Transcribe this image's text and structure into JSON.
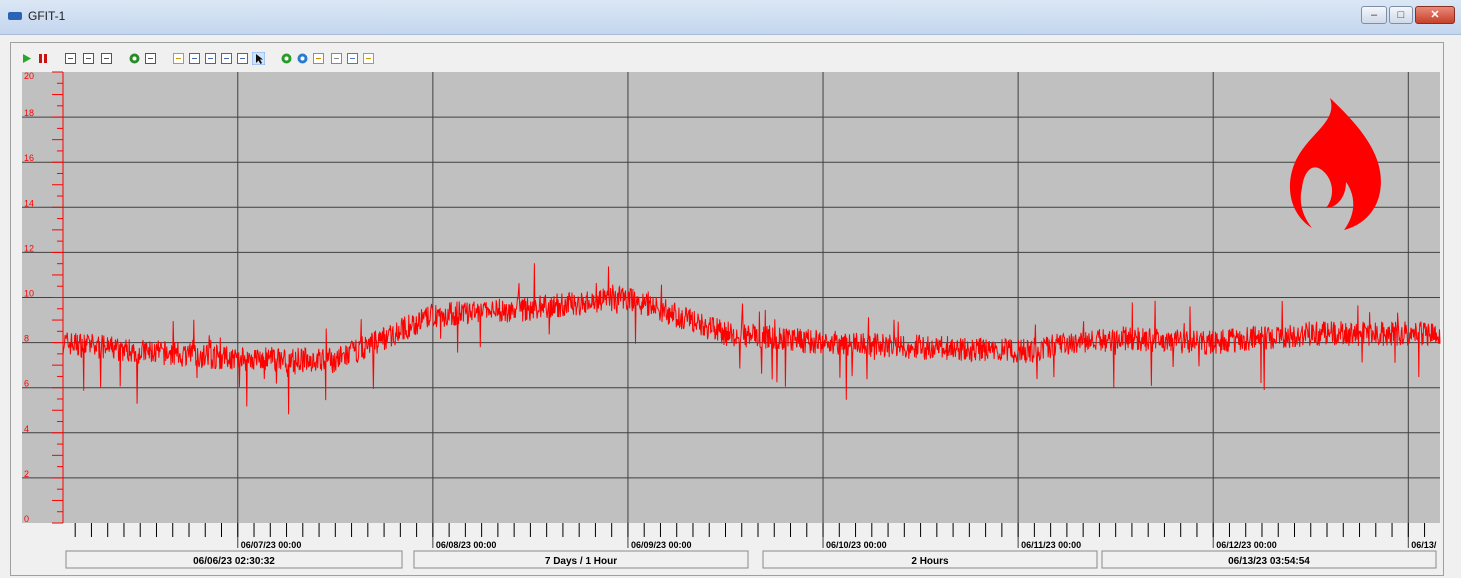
{
  "window": {
    "title": "GFIT-1"
  },
  "window_buttons": {
    "minimize": "–",
    "maximize": "□",
    "close": "✕"
  },
  "toolbar": {
    "buttons": [
      {
        "name": "start-icon"
      },
      {
        "name": "pause-icon"
      },
      {
        "name": "fit-width-icon"
      },
      {
        "name": "fit-marker-icon"
      },
      {
        "name": "reset-view-icon"
      },
      {
        "name": "refresh-data-icon"
      },
      {
        "name": "print-icon"
      },
      {
        "name": "cursor-line-icon"
      },
      {
        "name": "zoom-area-icon"
      },
      {
        "name": "zoom-in-icon"
      },
      {
        "name": "zoom-out-icon"
      },
      {
        "name": "zoom-reset-icon"
      },
      {
        "name": "pointer-icon"
      },
      {
        "name": "reload-icon"
      },
      {
        "name": "add-pen-icon"
      },
      {
        "name": "grid-icon"
      },
      {
        "name": "scale-icon"
      },
      {
        "name": "properties-icon"
      },
      {
        "name": "export-icon"
      }
    ]
  },
  "status": {
    "start_time": "06/06/23 02:30:32",
    "duration": "7 Days / 1 Hour",
    "interval": "2 Hours",
    "end_time": "06/13/23 03:54:54"
  },
  "colors": {
    "pen": "#ff0000",
    "plot_bg": "#c0c0c0",
    "grid": "#404040",
    "accent": "#cc2222"
  },
  "chart_data": {
    "type": "line",
    "series": [
      {
        "x": [
          "06/06/23 02:30",
          "06/06/23 12:00",
          "06/07/23 00:00",
          "06/07/23 12:00",
          "06/08/23 00:00",
          "06/08/23 12:00",
          "06/09/23 00:00",
          "06/09/23 12:00",
          "06/10/23 00:00",
          "06/10/23 12:00",
          "06/11/23 00:00",
          "06/11/23 12:00",
          "06/12/23 00:00",
          "06/12/23 12:00",
          "06/13/23 03:54"
        ],
        "values": [
          8.0,
          7.6,
          7.3,
          7.2,
          9.2,
          9.5,
          10.0,
          8.4,
          8.0,
          7.8,
          7.6,
          8.2,
          8.0,
          8.4,
          8.4
        ]
      }
    ],
    "ylim": [
      0,
      20
    ],
    "yticks": [
      "0",
      "2",
      "4",
      "6",
      "8",
      "10",
      "12",
      "14",
      "16",
      "18",
      "20"
    ],
    "xticks": [
      "06/07/23 00:00",
      "06/08/23 00:00",
      "06/09/23 00:00",
      "06/10/23 00:00",
      "06/11/23 00:00",
      "06/12/23 00:00",
      "06/13/"
    ],
    "grid": true
  }
}
